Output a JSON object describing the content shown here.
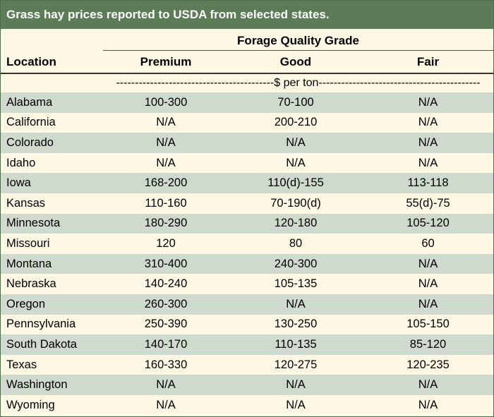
{
  "title": "Grass hay prices reported to USDA from selected states.",
  "group_header": "Forage Quality Grade",
  "columns": {
    "location": "Location",
    "premium": "Premium",
    "good": "Good",
    "fair": "Fair"
  },
  "units": "------------------------------------------$ per ton-------------------------------------------",
  "rows": [
    {
      "location": "Alabama",
      "premium": "100-300",
      "good": "70-100",
      "fair": "N/A"
    },
    {
      "location": "California",
      "premium": "N/A",
      "good": "200-210",
      "fair": "N/A"
    },
    {
      "location": "Colorado",
      "premium": "N/A",
      "good": "N/A",
      "fair": "N/A"
    },
    {
      "location": "Idaho",
      "premium": "N/A",
      "good": "N/A",
      "fair": "N/A"
    },
    {
      "location": "Iowa",
      "premium": "168-200",
      "good": "110(d)-155",
      "fair": "113-118"
    },
    {
      "location": "Kansas",
      "premium": "110-160",
      "good": "70-190(d)",
      "fair": "55(d)-75"
    },
    {
      "location": "Minnesota",
      "premium": "180-290",
      "good": "120-180",
      "fair": "105-120"
    },
    {
      "location": "Missouri",
      "premium": "120",
      "good": "80",
      "fair": "60"
    },
    {
      "location": "Montana",
      "premium": "310-400",
      "good": "240-300",
      "fair": "N/A"
    },
    {
      "location": "Nebraska",
      "premium": "140-240",
      "good": "105-135",
      "fair": "N/A"
    },
    {
      "location": "Oregon",
      "premium": "260-300",
      "good": "N/A",
      "fair": "N/A"
    },
    {
      "location": "Pennsylvania",
      "premium": "250-390",
      "good": "130-250",
      "fair": "105-150"
    },
    {
      "location": "South Dakota",
      "premium": "140-170",
      "good": "110-135",
      "fair": "85-120"
    },
    {
      "location": "Texas",
      "premium": "160-330",
      "good": "120-275",
      "fair": "120-235"
    },
    {
      "location": "Washington",
      "premium": "N/A",
      "good": "N/A",
      "fair": "N/A"
    },
    {
      "location": "Wyoming",
      "premium": "N/A",
      "good": "N/A",
      "fair": "N/A"
    }
  ]
}
